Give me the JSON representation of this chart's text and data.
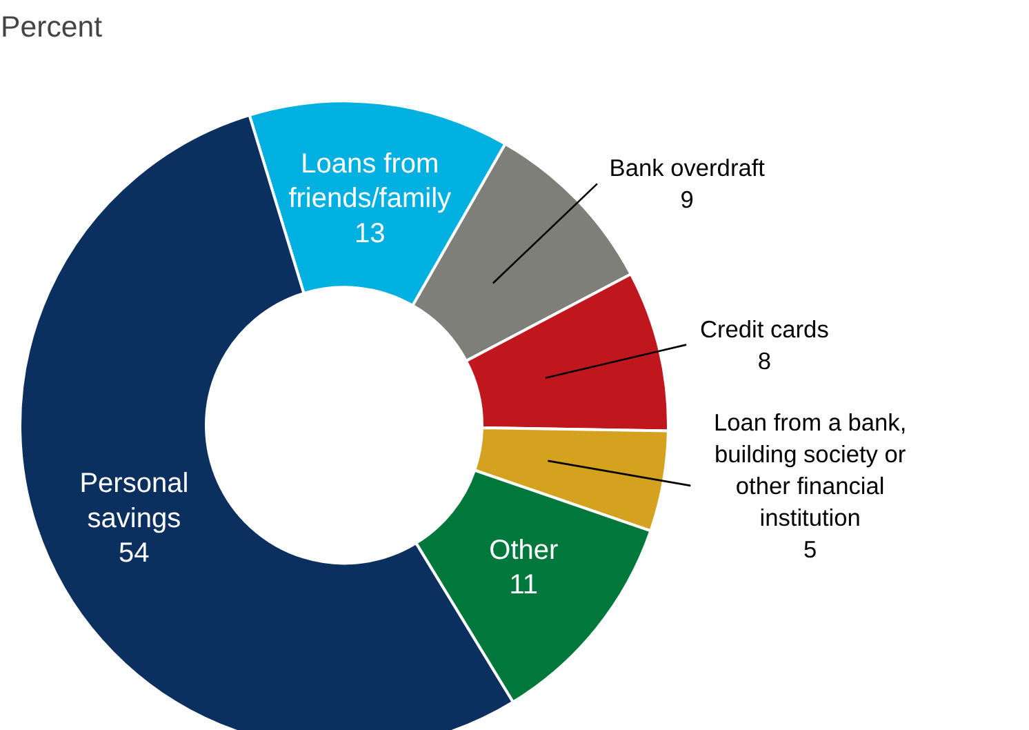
{
  "chart_data": {
    "type": "donut",
    "title": "Percent",
    "categories": [
      "Loans from friends/family",
      "Bank overdraft",
      "Credit cards",
      "Loan from a bank, building society or other financial institution",
      "Other",
      "Personal savings"
    ],
    "values": [
      13,
      9,
      8,
      5,
      11,
      54
    ],
    "colors": [
      "#00b0e0",
      "#7f7f79",
      "#c0171f",
      "#d4a21e",
      "#00783c",
      "#0b2f5e"
    ],
    "data_labels": true
  }
}
